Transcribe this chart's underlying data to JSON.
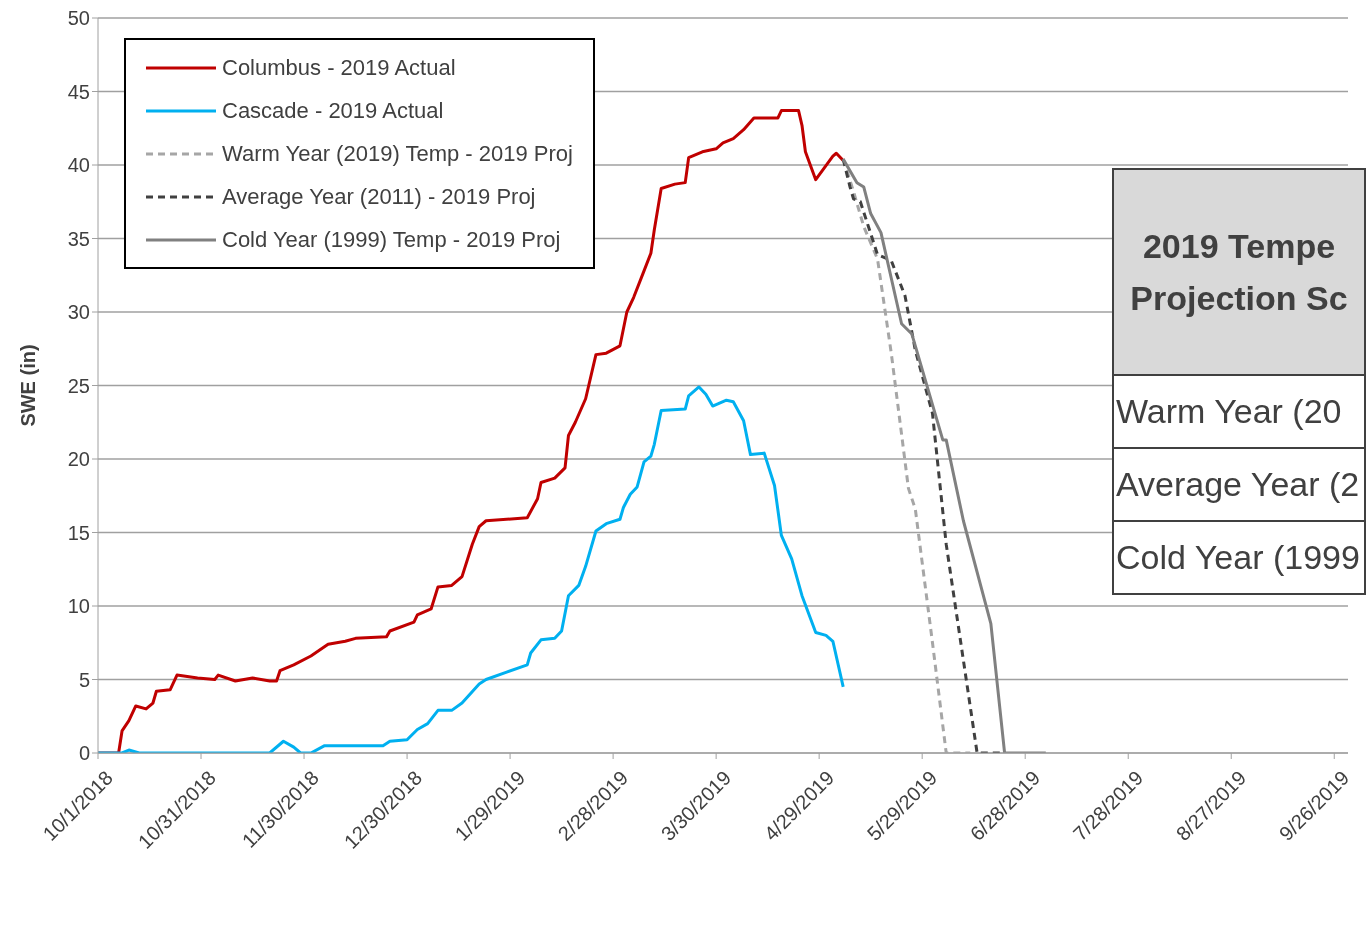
{
  "chart_data": {
    "type": "line",
    "ylabel": "SWE (in)",
    "ylim": [
      0,
      50
    ],
    "yticks": [
      0,
      5,
      10,
      15,
      20,
      25,
      30,
      35,
      40,
      45,
      50
    ],
    "xlim": [
      "2018-10-01",
      "2019-09-30"
    ],
    "xticks": [
      {
        "value": "2018-10-01",
        "label": "10/1/2018"
      },
      {
        "value": "2018-10-31",
        "label": "10/31/2018"
      },
      {
        "value": "2018-11-30",
        "label": "11/30/2018"
      },
      {
        "value": "2018-12-30",
        "label": "12/30/2018"
      },
      {
        "value": "2019-01-29",
        "label": "1/29/2019"
      },
      {
        "value": "2019-02-28",
        "label": "2/28/2019"
      },
      {
        "value": "2019-03-30",
        "label": "3/30/2019"
      },
      {
        "value": "2019-04-29",
        "label": "4/29/2019"
      },
      {
        "value": "2019-05-29",
        "label": "5/29/2019"
      },
      {
        "value": "2019-06-28",
        "label": "6/28/2019"
      },
      {
        "value": "2019-07-28",
        "label": "7/28/2019"
      },
      {
        "value": "2019-08-27",
        "label": "8/27/2019"
      },
      {
        "value": "2019-09-26",
        "label": "9/26/2019"
      }
    ],
    "grid": "y",
    "legend": "top left",
    "annotations": [
      "2019 Tempe Projection Sc",
      "Warm Year (20",
      "Average Year (2",
      "Cold Year (1999"
    ],
    "series": [
      {
        "name": "Columbus - 2019 Actual",
        "color": "#c00000",
        "line_style": "solid",
        "x": [
          "2018-10-01",
          "2018-10-07",
          "2018-10-08",
          "2018-10-10",
          "2018-10-12",
          "2018-10-15",
          "2018-10-17",
          "2018-10-18",
          "2018-10-22",
          "2018-10-24",
          "2018-10-30",
          "2018-11-04",
          "2018-11-05",
          "2018-11-10",
          "2018-11-15",
          "2018-11-20",
          "2018-11-22",
          "2018-11-23",
          "2018-11-27",
          "2018-12-02",
          "2018-12-07",
          "2018-12-12",
          "2018-12-15",
          "2018-12-24",
          "2018-12-25",
          "2019-01-01",
          "2019-01-02",
          "2019-01-06",
          "2019-01-08",
          "2019-01-12",
          "2019-01-15",
          "2019-01-18",
          "2019-01-20",
          "2019-01-22",
          "2019-02-03",
          "2019-02-06",
          "2019-02-07",
          "2019-02-11",
          "2019-02-14",
          "2019-02-15",
          "2019-02-17",
          "2019-02-20",
          "2019-02-23",
          "2019-02-26",
          "2019-03-02",
          "2019-03-04",
          "2019-03-06",
          "2019-03-09",
          "2019-03-11",
          "2019-03-12",
          "2019-03-14",
          "2019-03-18",
          "2019-03-21",
          "2019-03-22",
          "2019-03-26",
          "2019-03-30",
          "2019-04-01",
          "2019-04-04",
          "2019-04-07",
          "2019-04-10",
          "2019-04-17",
          "2019-04-18",
          "2019-04-23",
          "2019-04-24",
          "2019-04-25",
          "2019-04-28",
          "2019-05-03",
          "2019-05-04",
          "2019-05-06"
        ],
        "values": [
          0,
          0,
          1.5,
          2.2,
          3.2,
          3.0,
          3.4,
          4.2,
          4.3,
          5.3,
          5.1,
          5.0,
          5.3,
          4.9,
          5.1,
          4.9,
          4.9,
          5.6,
          6.0,
          6.6,
          7.4,
          7.6,
          7.8,
          7.9,
          8.3,
          8.9,
          9.4,
          9.8,
          11.3,
          11.4,
          12.0,
          14.2,
          15.4,
          15.8,
          16.0,
          17.3,
          18.4,
          18.7,
          19.4,
          21.6,
          22.5,
          24.1,
          27.1,
          27.2,
          27.7,
          30.0,
          31.0,
          32.8,
          34.0,
          35.6,
          38.4,
          38.7,
          38.8,
          40.5,
          40.9,
          41.1,
          41.5,
          41.8,
          42.4,
          43.2,
          43.2,
          43.7,
          43.7,
          42.7,
          40.9,
          39.0,
          40.6,
          40.8,
          40.3
        ]
      },
      {
        "name": "Cascade - 2019 Actual",
        "color": "#00b0f0",
        "line_style": "solid",
        "x": [
          "2018-10-01",
          "2018-10-08",
          "2018-10-10",
          "2018-10-13",
          "2018-11-20",
          "2018-11-24",
          "2018-11-27",
          "2018-11-29",
          "2018-12-02",
          "2018-12-06",
          "2018-12-23",
          "2018-12-25",
          "2018-12-30",
          "2019-01-02",
          "2019-01-05",
          "2019-01-08",
          "2019-01-12",
          "2019-01-15",
          "2019-01-20",
          "2019-01-22",
          "2019-01-28",
          "2019-02-03",
          "2019-02-04",
          "2019-02-07",
          "2019-02-11",
          "2019-02-13",
          "2019-02-15",
          "2019-02-18",
          "2019-02-20",
          "2019-02-23",
          "2019-02-26",
          "2019-03-02",
          "2019-03-03",
          "2019-03-05",
          "2019-03-07",
          "2019-03-09",
          "2019-03-11",
          "2019-03-12",
          "2019-03-14",
          "2019-03-21",
          "2019-03-22",
          "2019-03-25",
          "2019-03-27",
          "2019-03-29",
          "2019-04-02",
          "2019-04-04",
          "2019-04-07",
          "2019-04-09",
          "2019-04-13",
          "2019-04-16",
          "2019-04-18",
          "2019-04-21",
          "2019-04-24",
          "2019-04-28",
          "2019-05-01",
          "2019-05-03",
          "2019-05-06"
        ],
        "values": [
          0,
          0,
          0.2,
          0,
          0,
          0.8,
          0.4,
          0,
          0,
          0.5,
          0.5,
          0.8,
          0.9,
          1.6,
          2.0,
          2.9,
          2.9,
          3.4,
          4.7,
          5.0,
          5.5,
          6.0,
          6.8,
          7.7,
          7.8,
          8.3,
          10.7,
          11.4,
          12.7,
          15.1,
          15.6,
          15.9,
          16.7,
          17.6,
          18.1,
          19.8,
          20.2,
          21.0,
          23.3,
          23.4,
          24.3,
          24.9,
          24.4,
          23.6,
          24.0,
          23.9,
          22.6,
          20.3,
          20.4,
          18.2,
          14.8,
          13.2,
          10.7,
          8.2,
          8.0,
          7.6,
          4.5
        ]
      },
      {
        "name": "Warm Year (2019) Temp - 2019 Proj",
        "color": "#a6a6a6",
        "line_style": "dashed",
        "x": [
          "2019-05-06",
          "2019-05-09",
          "2019-05-12",
          "2019-05-16",
          "2019-05-20",
          "2019-05-25",
          "2019-05-27",
          "2019-06-01",
          "2019-06-05",
          "2019-06-12"
        ],
        "values": [
          40.4,
          38.2,
          35.8,
          33.6,
          27.2,
          18.0,
          16.6,
          7.5,
          0,
          0
        ]
      },
      {
        "name": "Average Year (2011) - 2019 Proj",
        "color": "#404040",
        "line_style": "dashed",
        "x": [
          "2019-05-06",
          "2019-05-08",
          "2019-05-09",
          "2019-05-11",
          "2019-05-16",
          "2019-05-20",
          "2019-05-24",
          "2019-05-27",
          "2019-06-01",
          "2019-06-05",
          "2019-06-14",
          "2019-06-22"
        ],
        "values": [
          40.4,
          38.5,
          37.7,
          37.5,
          33.9,
          33.5,
          31.1,
          27.4,
          23.1,
          14.2,
          0,
          0
        ]
      },
      {
        "name": "Cold Year (1999) Temp - 2019 Proj",
        "color": "#808080",
        "line_style": "solid",
        "x": [
          "2019-05-06",
          "2019-05-10",
          "2019-05-12",
          "2019-05-14",
          "2019-05-17",
          "2019-05-23",
          "2019-05-26",
          "2019-05-29",
          "2019-06-04",
          "2019-06-05",
          "2019-06-10",
          "2019-06-18",
          "2019-06-22",
          "2019-07-04"
        ],
        "values": [
          40.4,
          38.8,
          38.5,
          36.7,
          35.4,
          29.2,
          28.5,
          26.1,
          21.3,
          21.3,
          15.8,
          8.8,
          0,
          0
        ]
      }
    ]
  }
}
